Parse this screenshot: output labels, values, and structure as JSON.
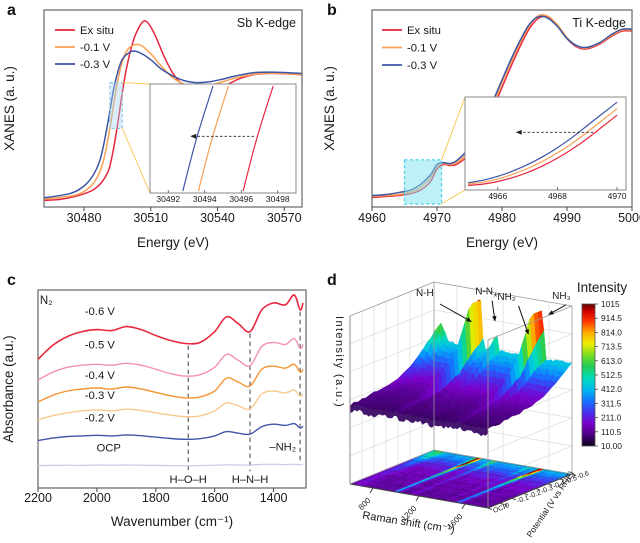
{
  "chart_data": [
    {
      "id": "a",
      "panel_label": "a",
      "type": "line",
      "corner_label": "Sb K-edge",
      "xlabel": "Energy (eV)",
      "ylabel": "XANES (a. u.)",
      "xlim": [
        30462,
        30578
      ],
      "xticks": [
        30480,
        30510,
        30540,
        30570
      ],
      "legend": [
        "Ex situ",
        "-0.1 V",
        "-0.3 V"
      ],
      "series": [
        {
          "name": "Ex situ",
          "color": "#e8273f",
          "x": [
            30462,
            30470,
            30478,
            30484,
            30488,
            30491,
            30493,
            30495,
            30497,
            30499,
            30501,
            30503,
            30505,
            30507,
            30509,
            30512,
            30516,
            30520,
            30525,
            30530,
            30534,
            30538,
            30544,
            30550,
            30556,
            30564,
            30572,
            30578
          ],
          "v": [
            0.05,
            0.06,
            0.09,
            0.13,
            0.19,
            0.28,
            0.42,
            0.62,
            0.85,
            1.05,
            1.2,
            1.31,
            1.38,
            1.42,
            1.4,
            1.31,
            1.15,
            1.02,
            0.92,
            0.86,
            0.845,
            0.87,
            0.93,
            0.98,
            1.01,
            1.02,
            1.015,
            1.01
          ]
        },
        {
          "name": "-0.1 V",
          "color": "#f9a054",
          "x": [
            30462,
            30470,
            30476,
            30481,
            30485,
            30488,
            30490,
            30492,
            30494,
            30496,
            30498,
            30500,
            30503,
            30506,
            30510,
            30514,
            30519,
            30524,
            30529,
            30534,
            30540,
            30546,
            30552,
            30560,
            30568,
            30578
          ],
          "v": [
            0.06,
            0.075,
            0.09,
            0.13,
            0.2,
            0.31,
            0.45,
            0.64,
            0.86,
            1.03,
            1.15,
            1.21,
            1.24,
            1.23,
            1.17,
            1.09,
            1.0,
            0.945,
            0.92,
            0.92,
            0.945,
            0.975,
            1.0,
            1.02,
            1.02,
            1.01
          ]
        },
        {
          "name": "-0.3 V",
          "color": "#3c55a5",
          "x": [
            30462,
            30470,
            30475,
            30480,
            30484,
            30487,
            30489,
            30491,
            30493,
            30495,
            30497,
            30500,
            30503,
            30507,
            30511,
            30515,
            30520,
            30525,
            30530,
            30536,
            30542,
            30548,
            30556,
            30564,
            30572,
            30578
          ],
          "v": [
            0.07,
            0.09,
            0.11,
            0.16,
            0.24,
            0.35,
            0.49,
            0.67,
            0.87,
            1.02,
            1.12,
            1.175,
            1.19,
            1.16,
            1.11,
            1.05,
            1.0,
            0.965,
            0.95,
            0.955,
            0.975,
            1.0,
            1.025,
            1.03,
            1.025,
            1.02
          ]
        }
      ],
      "highlight": {
        "x0": 30491.6,
        "x1": 30497.2,
        "v0": 0.6,
        "v1": 0.95,
        "stroke": "#8ecae6",
        "fill": "rgba(165,210,240,0.4)"
      },
      "connector_color": "#f6c64a",
      "inset": {
        "xlim": [
          30491,
          30499
        ],
        "xticks": [
          30492,
          30494,
          30496,
          30498
        ],
        "series": [
          {
            "color": "#3c55a5",
            "x": [
              30492.8,
              30493.55,
              30494.45
            ],
            "v": [
              0,
              0.5,
              1
            ]
          },
          {
            "color": "#f9a054",
            "x": [
              30493.65,
              30494.4,
              30495.3
            ],
            "v": [
              0,
              0.5,
              1
            ]
          },
          {
            "color": "#e8273f",
            "x": [
              30496.1,
              30496.85,
              30497.75
            ],
            "v": [
              0,
              0.5,
              1
            ]
          }
        ],
        "arrow": {
          "x_from": 30496.7,
          "x_to": 30493.2,
          "v": 0.52
        }
      }
    },
    {
      "id": "b",
      "panel_label": "b",
      "type": "line",
      "corner_label": "Ti K-edge",
      "xlabel": "Energy (eV)",
      "ylabel": "XANES (a. u.)",
      "xlim": [
        4960,
        5000
      ],
      "xticks": [
        4960,
        4970,
        4980,
        4990,
        5000
      ],
      "legend": [
        "Ex situ",
        "-0.1 V",
        "-0.3 V"
      ],
      "series": [
        {
          "name": "Ex situ",
          "color": "#e8273f",
          "x": [
            4960,
            4962,
            4964,
            4966,
            4967.5,
            4969,
            4970,
            4971,
            4972,
            4973,
            4974.5,
            4976,
            4978,
            4980,
            4982,
            4984,
            4985.5,
            4987,
            4988.5,
            4990,
            4991.5,
            4993,
            4995,
            4997,
            4998.5,
            5000
          ],
          "v": [
            0.035,
            0.04,
            0.045,
            0.055,
            0.075,
            0.12,
            0.185,
            0.21,
            0.205,
            0.21,
            0.25,
            0.32,
            0.46,
            0.62,
            0.78,
            0.92,
            0.985,
            0.995,
            0.95,
            0.88,
            0.835,
            0.825,
            0.85,
            0.895,
            0.92,
            0.92
          ]
        },
        {
          "name": "-0.1 V",
          "color": "#f9a054",
          "x": [
            4960,
            4962,
            4964,
            4966,
            4967.5,
            4969,
            4970,
            4971,
            4972,
            4973,
            4974.5,
            4976,
            4978,
            4980,
            4982,
            4984,
            4985.5,
            4987,
            4988.5,
            4990,
            4991.5,
            4993,
            4995,
            4997,
            4998.5,
            5000
          ],
          "v": [
            0.04,
            0.045,
            0.05,
            0.065,
            0.09,
            0.14,
            0.2,
            0.215,
            0.21,
            0.22,
            0.265,
            0.34,
            0.48,
            0.645,
            0.8,
            0.935,
            1.0,
            1.0,
            0.955,
            0.885,
            0.84,
            0.83,
            0.855,
            0.9,
            0.925,
            0.925
          ]
        },
        {
          "name": "-0.3 V",
          "color": "#3c55a5",
          "x": [
            4960,
            4962,
            4964,
            4966,
            4967.5,
            4969,
            4970,
            4971,
            4972,
            4973,
            4974.5,
            4976,
            4978,
            4980,
            4982,
            4984,
            4985.5,
            4987,
            4988.5,
            4990,
            4991.5,
            4993,
            4995,
            4997,
            4998.5,
            5000
          ],
          "v": [
            0.045,
            0.05,
            0.06,
            0.075,
            0.105,
            0.155,
            0.21,
            0.22,
            0.215,
            0.23,
            0.28,
            0.36,
            0.5,
            0.66,
            0.815,
            0.945,
            0.995,
            0.99,
            0.945,
            0.88,
            0.842,
            0.833,
            0.858,
            0.905,
            0.93,
            0.93
          ]
        }
      ],
      "highlight": {
        "x0": 4965,
        "x1": 4970.7,
        "v0": 0.0,
        "v1": 0.235,
        "stroke": "#45d0e8",
        "fill": "rgba(125,225,242,0.5)"
      },
      "connector_color": "#f6c64a",
      "inset": {
        "xlim": [
          4964.9,
          4970.3
        ],
        "xticks": [
          4966,
          4968,
          4970
        ],
        "series": [
          {
            "color": "#e8273f",
            "x": [
              4965,
              4965.5,
              4966,
              4966.5,
              4967,
              4967.5,
              4968,
              4968.5,
              4969,
              4969.5,
              4970
            ],
            "v": [
              0.02,
              0.03,
              0.05,
              0.08,
              0.12,
              0.17,
              0.23,
              0.3,
              0.38,
              0.47,
              0.56
            ]
          },
          {
            "color": "#f9a054",
            "x": [
              4965,
              4965.5,
              4966,
              4966.5,
              4967,
              4967.5,
              4968,
              4968.5,
              4969,
              4969.5,
              4970
            ],
            "v": [
              0.03,
              0.045,
              0.07,
              0.105,
              0.15,
              0.205,
              0.27,
              0.345,
              0.43,
              0.52,
              0.61
            ]
          },
          {
            "color": "#3c55a5",
            "x": [
              4965,
              4965.5,
              4966,
              4966.5,
              4967,
              4967.5,
              4968,
              4968.5,
              4969,
              4969.5,
              4970
            ],
            "v": [
              0.04,
              0.06,
              0.09,
              0.13,
              0.18,
              0.24,
              0.31,
              0.39,
              0.48,
              0.57,
              0.66
            ]
          }
        ],
        "arrow": {
          "x_from": 4969.2,
          "x_to": 4966.6,
          "v": 0.62
        }
      }
    },
    {
      "id": "c",
      "panel_label": "c",
      "type": "stacked-lines",
      "gas_label": "N₂",
      "xlabel": "Wavenumber (cm⁻¹)",
      "ylabel": "Absorbance (a.u.)",
      "xlim": [
        2200,
        1290
      ],
      "xticks": [
        2200,
        2000,
        1800,
        1600,
        1400
      ],
      "x": [
        2200,
        2150,
        2100,
        2050,
        2000,
        1950,
        1900,
        1850,
        1800,
        1750,
        1700,
        1650,
        1600,
        1560,
        1520,
        1480,
        1440,
        1400,
        1360,
        1330,
        1310,
        1300
      ],
      "series": [
        {
          "name": "-0.6 V",
          "color": "#e8273f",
          "width": 1.6,
          "label_x": 1990,
          "label_v": 0.875,
          "v": [
            0.65,
            0.72,
            0.765,
            0.79,
            0.8,
            0.795,
            0.815,
            0.8,
            0.77,
            0.745,
            0.73,
            0.735,
            0.79,
            0.865,
            0.83,
            0.79,
            0.9,
            0.935,
            0.925,
            0.975,
            0.9,
            0.935
          ]
        },
        {
          "name": "-0.5 V",
          "color": "#f390b8",
          "width": 1.4,
          "label_x": 1990,
          "label_v": 0.705,
          "v": [
            0.545,
            0.585,
            0.61,
            0.62,
            0.625,
            0.62,
            0.63,
            0.62,
            0.6,
            0.578,
            0.565,
            0.572,
            0.61,
            0.675,
            0.645,
            0.617,
            0.715,
            0.735,
            0.725,
            0.755,
            0.705,
            0.725
          ]
        },
        {
          "name": "-0.4 V",
          "color": "#f59433",
          "width": 1.4,
          "label_x": 1990,
          "label_v": 0.55,
          "v": [
            0.435,
            0.468,
            0.49,
            0.5,
            0.505,
            0.5,
            0.51,
            0.5,
            0.483,
            0.466,
            0.455,
            0.46,
            0.49,
            0.555,
            0.535,
            0.515,
            0.6,
            0.615,
            0.605,
            0.625,
            0.585,
            0.6
          ]
        },
        {
          "name": "-0.3 V",
          "color": "#f8c88e",
          "width": 1.4,
          "label_x": 1990,
          "label_v": 0.45,
          "v": [
            0.345,
            0.365,
            0.38,
            0.39,
            0.395,
            0.39,
            0.398,
            0.392,
            0.38,
            0.368,
            0.36,
            0.364,
            0.39,
            0.43,
            0.415,
            0.4,
            0.475,
            0.49,
            0.48,
            0.495,
            0.465,
            0.475
          ]
        },
        {
          "name": "-0.2 V",
          "color": "#4055a8",
          "width": 1.4,
          "label_x": 1990,
          "label_v": 0.335,
          "v": [
            0.24,
            0.252,
            0.26,
            0.263,
            0.266,
            0.263,
            0.268,
            0.264,
            0.257,
            0.25,
            0.246,
            0.249,
            0.263,
            0.285,
            0.277,
            0.272,
            0.31,
            0.322,
            0.316,
            0.325,
            0.303,
            0.312
          ]
        },
        {
          "name": "OCP",
          "color": "#c9c9e6",
          "width": 1.2,
          "label_x": 1960,
          "label_v": 0.185,
          "v": [
            0.113,
            0.114,
            0.115,
            0.114,
            0.116,
            0.115,
            0.116,
            0.115,
            0.114,
            0.113,
            0.112,
            0.113,
            0.115,
            0.117,
            0.116,
            0.116,
            0.119,
            0.12,
            0.118,
            0.12,
            0.117,
            0.118
          ]
        }
      ],
      "dashed_lines": [
        {
          "x": 1690,
          "label": "H–O–H",
          "v_top": 0.72,
          "v_bot": 0.085,
          "label_pos": "below"
        },
        {
          "x": 1480,
          "label": "H–N–H",
          "v_top": 0.78,
          "v_bot": 0.085,
          "label_pos": "below"
        },
        {
          "x": 1310,
          "label": "–NH₂",
          "v_top": 0.89,
          "v_bot": 0.135,
          "label_pos": "side",
          "label_v": 0.19
        }
      ]
    },
    {
      "id": "d",
      "panel_label": "d",
      "type": "surface3d",
      "xlabel": "Raman shift (cm⁻¹)",
      "ylabel": "Potential (V vs RHE)",
      "zlabel": "Intensity (a.u.)",
      "xlim": [
        600,
        1800
      ],
      "xticks": [
        800,
        1200,
        1600
      ],
      "potentials_front_to_back": [
        "OCP",
        "0",
        "-0.1",
        "-0.2",
        "-0.3",
        "-0.4",
        "-0.5",
        "-0.6"
      ],
      "row_amplitude": [
        0.03,
        0.05,
        0.08,
        0.13,
        0.22,
        0.38,
        0.72,
        1.0
      ],
      "peaks": [
        {
          "label": "N-H",
          "shift": 1000,
          "sigma": 18,
          "height": 1.0
        },
        {
          "label": "N-N",
          "shift": 1140,
          "sigma": 14,
          "height": 0.26
        },
        {
          "label": "*NH₂",
          "shift": 1440,
          "sigma": 12,
          "height": 0.15
        },
        {
          "label": "NH₃",
          "shift": 1540,
          "sigma": 16,
          "height": 0.93
        },
        {
          "label": "",
          "shift": 660,
          "sigma": 45,
          "height": 0.2
        }
      ],
      "colorbar": {
        "title": "Intensity",
        "vmin": "10.00",
        "vmax": "1015",
        "tick_labels": [
          "1015",
          "914.5",
          "814.0",
          "713.5",
          "613.0",
          "512.5",
          "412.0",
          "311.5",
          "211.0",
          "110.5",
          "10.00"
        ]
      },
      "colormap": [
        [
          0,
          "#10001a"
        ],
        [
          0.08,
          "#4b0082"
        ],
        [
          0.16,
          "#7a00cc"
        ],
        [
          0.24,
          "#4433ee"
        ],
        [
          0.32,
          "#1177ff"
        ],
        [
          0.4,
          "#00bbee"
        ],
        [
          0.48,
          "#00ddbb"
        ],
        [
          0.56,
          "#22cc55"
        ],
        [
          0.64,
          "#77dd22"
        ],
        [
          0.72,
          "#eeee00"
        ],
        [
          0.8,
          "#ffaa00"
        ],
        [
          0.88,
          "#ff3300"
        ],
        [
          0.95,
          "#cc0000"
        ],
        [
          1,
          "#660000"
        ]
      ]
    }
  ]
}
